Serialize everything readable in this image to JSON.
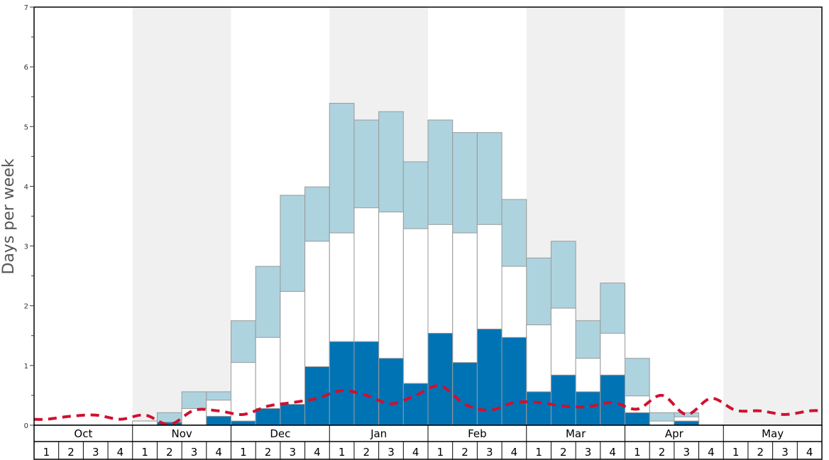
{
  "chart_data": {
    "type": "bar",
    "ylabel": "Days per week",
    "ylim": [
      0,
      7
    ],
    "yticks": [
      "0",
      "1",
      "2",
      "3",
      "4",
      "5",
      "6",
      "7"
    ],
    "months": [
      "Oct",
      "Nov",
      "Dec",
      "Jan",
      "Feb",
      "Mar",
      "Apr",
      "May"
    ],
    "weeks": [
      "1",
      "2",
      "3",
      "4"
    ],
    "shaded_months": [
      "Nov",
      "Jan",
      "Mar",
      "May"
    ],
    "grid": false,
    "legend": "none",
    "series": [
      {
        "color": "#0073b5",
        "values": [
          0,
          0,
          0,
          0,
          0,
          0.05,
          0,
          0.15,
          0.07,
          0.28,
          0.35,
          0.98,
          1.4,
          1.4,
          1.12,
          0.7,
          1.54,
          1.05,
          1.61,
          1.47,
          0.56,
          0.84,
          0.56,
          0.84,
          0.21,
          0,
          0.07,
          0,
          0,
          0,
          0,
          0
        ]
      },
      {
        "color": "#ffffff",
        "values": [
          0,
          0,
          0,
          0,
          0.07,
          0.05,
          0.28,
          0.42,
          1.05,
          1.47,
          2.24,
          3.08,
          3.22,
          3.64,
          3.57,
          3.29,
          3.36,
          3.22,
          3.36,
          2.66,
          1.68,
          1.96,
          1.12,
          1.54,
          0.49,
          0.07,
          0.14,
          0,
          0,
          0,
          0,
          0
        ]
      },
      {
        "color": "#add3df",
        "values": [
          0,
          0,
          0,
          0,
          0.07,
          0.21,
          0.56,
          0.56,
          1.75,
          2.66,
          3.85,
          3.99,
          5.39,
          5.11,
          5.25,
          4.41,
          5.11,
          4.9,
          4.9,
          3.78,
          2.8,
          3.08,
          1.75,
          2.38,
          1.12,
          0.21,
          0.21,
          0,
          0,
          0,
          0,
          0
        ]
      },
      {
        "color": "#d0102e",
        "style": "dashed",
        "values": [
          0.1,
          0.15,
          0.17,
          0.1,
          0.17,
          0.01,
          0.25,
          0.24,
          0.18,
          0.32,
          0.38,
          0.45,
          0.58,
          0.5,
          0.36,
          0.5,
          0.66,
          0.35,
          0.25,
          0.38,
          0.38,
          0.32,
          0.31,
          0.38,
          0.27,
          0.5,
          0.18,
          0.45,
          0.25,
          0.24,
          0.18,
          0.24
        ]
      }
    ]
  }
}
